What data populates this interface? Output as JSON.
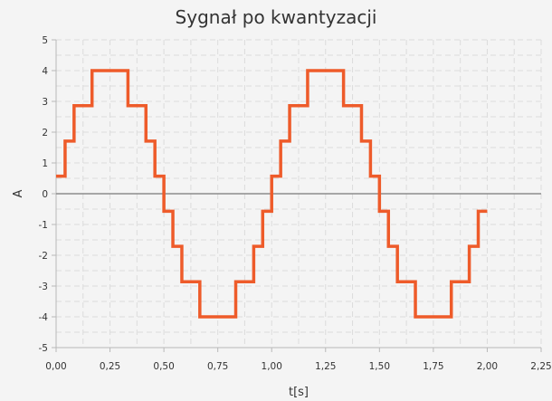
{
  "chart_data": {
    "type": "line",
    "step": true,
    "title": "Sygnał po kwantyzacji",
    "xlabel": "t[s]",
    "ylabel": "A",
    "xlim": [
      0,
      2.25
    ],
    "ylim": [
      -5,
      5
    ],
    "x_ticks": [
      "0,00",
      "0,25",
      "0,50",
      "0,75",
      "1,00",
      "1,25",
      "1,50",
      "1,75",
      "2,00",
      "2,25"
    ],
    "y_ticks": [
      "-5",
      "-4",
      "-3",
      "-2",
      "-1",
      "0",
      "1",
      "2",
      "3",
      "4",
      "5"
    ],
    "grid": true,
    "zero_line": true,
    "series": [
      {
        "color": "#ee5b2a",
        "x": [
          0,
          0.0417,
          0.0833,
          0.1667,
          0.3333,
          0.4167,
          0.4583,
          0.5,
          0.5417,
          0.5833,
          0.6667,
          0.8333,
          0.9167,
          0.9583,
          1.0,
          1.0417,
          1.0833,
          1.1667,
          1.3333,
          1.4167,
          1.4583,
          1.5,
          1.5417,
          1.5833,
          1.6667,
          1.8333,
          1.9167,
          1.9583,
          2.0
        ],
        "y": [
          0.57,
          1.71,
          2.86,
          4.0,
          2.86,
          1.71,
          0.57,
          -0.57,
          -1.71,
          -2.86,
          -4.0,
          -2.86,
          -1.71,
          -0.57,
          0.57,
          1.71,
          2.86,
          4.0,
          2.86,
          1.71,
          0.57,
          -0.57,
          -1.71,
          -2.86,
          -4.0,
          -2.86,
          -1.71,
          -0.57,
          -0.57
        ]
      }
    ]
  }
}
